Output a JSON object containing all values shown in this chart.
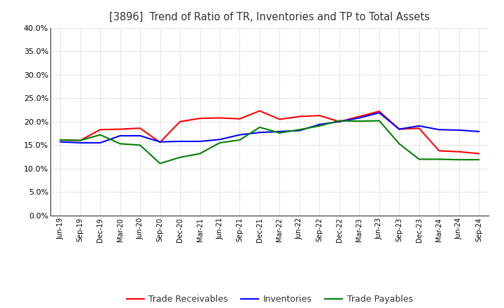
{
  "title": "[3896]  Trend of Ratio of TR, Inventories and TP to Total Assets",
  "x_labels": [
    "Jun-19",
    "Sep-19",
    "Dec-19",
    "Mar-20",
    "Jun-20",
    "Sep-20",
    "Dec-20",
    "Mar-21",
    "Jun-21",
    "Sep-21",
    "Dec-21",
    "Mar-22",
    "Jun-22",
    "Sep-22",
    "Dec-22",
    "Mar-23",
    "Jun-23",
    "Sep-23",
    "Dec-23",
    "Mar-24",
    "Jun-24",
    "Sep-24"
  ],
  "trade_receivables": [
    0.161,
    0.16,
    0.183,
    0.184,
    0.186,
    0.156,
    0.2,
    0.207,
    0.208,
    0.206,
    0.223,
    0.205,
    0.211,
    0.213,
    0.2,
    0.211,
    0.222,
    0.184,
    0.186,
    0.138,
    0.136,
    0.132
  ],
  "inventories": [
    0.157,
    0.155,
    0.155,
    0.17,
    0.17,
    0.157,
    0.158,
    0.158,
    0.162,
    0.172,
    0.177,
    0.179,
    0.181,
    0.194,
    0.2,
    0.208,
    0.219,
    0.184,
    0.191,
    0.183,
    0.182,
    0.179
  ],
  "trade_payables": [
    0.161,
    0.16,
    0.172,
    0.153,
    0.15,
    0.111,
    0.124,
    0.132,
    0.155,
    0.161,
    0.188,
    0.176,
    0.183,
    0.191,
    0.202,
    0.201,
    0.202,
    0.153,
    0.12,
    0.12,
    0.119,
    0.119
  ],
  "color_tr": "#ff0000",
  "color_inv": "#0000ff",
  "color_tp": "#008000",
  "ylim": [
    0.0,
    0.4
  ],
  "yticks": [
    0.0,
    0.05,
    0.1,
    0.15,
    0.2,
    0.25,
    0.3,
    0.35,
    0.4
  ],
  "legend_labels": [
    "Trade Receivables",
    "Inventories",
    "Trade Payables"
  ],
  "background_color": "#ffffff",
  "grid_color": "#bbbbbb"
}
